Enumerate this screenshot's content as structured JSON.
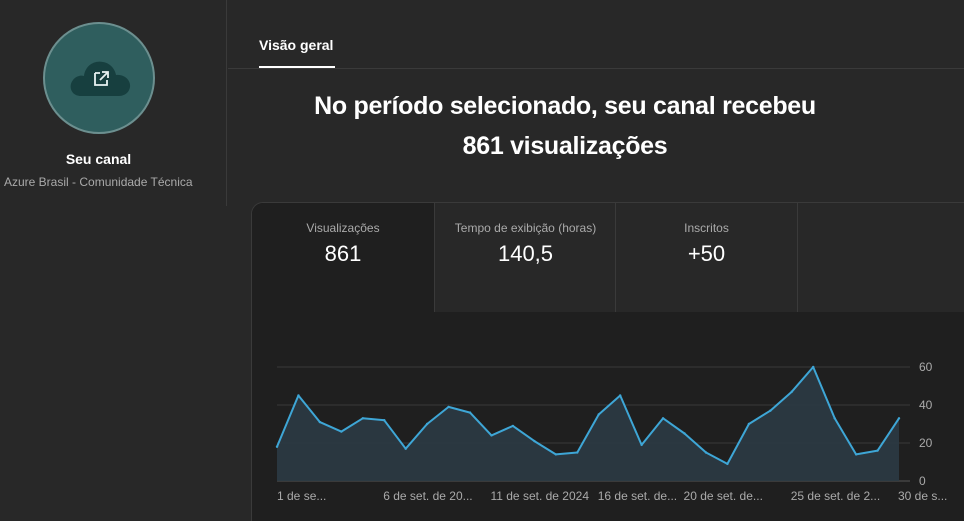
{
  "channel": {
    "title": "Seu canal",
    "subtitle": "Azure Brasil - Comunidade Técnica",
    "avatar_icon": "cloud-icon",
    "open_icon": "open-external-icon"
  },
  "tabs": [
    {
      "label": "Visão geral",
      "active": true
    }
  ],
  "headline": {
    "line1": "No período selecionado, seu canal recebeu",
    "line2": "861 visualizações"
  },
  "metrics": [
    {
      "label": "Visualizações",
      "value": "861",
      "selected": true
    },
    {
      "label": "Tempo de exibição (horas)",
      "value": "140,5",
      "selected": false
    },
    {
      "label": "Inscritos",
      "value": "+50",
      "selected": false
    },
    {
      "label": "",
      "value": "",
      "selected": false
    }
  ],
  "colors": {
    "line": "#3ea6d6",
    "area": "#2b3a44",
    "background": "#282828",
    "card": "#1f1f1f"
  },
  "chart_data": {
    "type": "area",
    "x_tick_labels": [
      "1 de se...",
      "6 de set. de 20...",
      "11 de set. de 2024",
      "16 de set. de...",
      "20 de set. de...",
      "25 de set. de 2...",
      "30 de s..."
    ],
    "x_tick_index": [
      0,
      5,
      10,
      15,
      19,
      24,
      29
    ],
    "values": [
      18,
      45,
      31,
      26,
      33,
      32,
      17,
      30,
      39,
      36,
      24,
      29,
      21,
      14,
      15,
      35,
      45,
      19,
      33,
      25,
      15,
      9,
      30,
      37,
      47,
      60,
      33,
      14,
      16,
      33
    ],
    "y_ticks": [
      0,
      20,
      40,
      60
    ],
    "ylim": [
      0,
      60
    ],
    "grid": true
  }
}
